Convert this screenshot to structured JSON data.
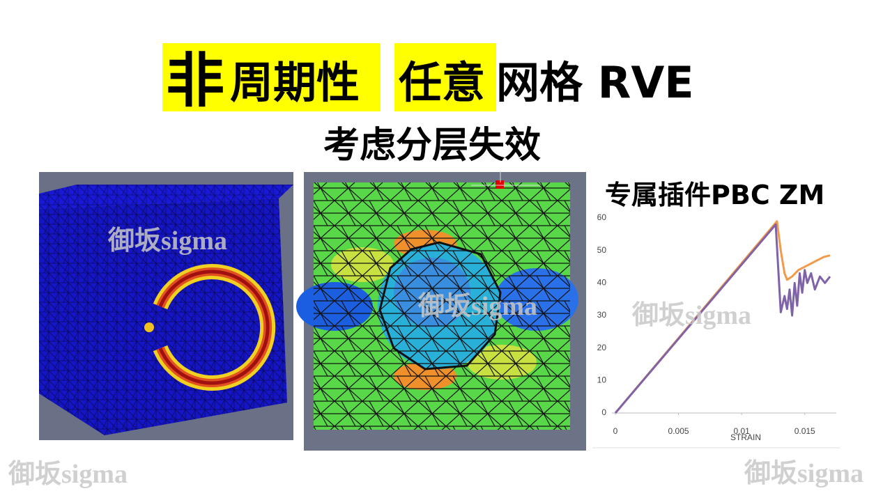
{
  "title_parts": [
    "非",
    "周期性",
    "任意",
    "网格 RVE"
  ],
  "subtitle": "考虑分层失效",
  "plugin_label": "专属插件PBC ZM",
  "watermarks": [
    "御坂sigma",
    "御坂sigma",
    "御坂sigma",
    "御坂sigma",
    "御坂sigma"
  ],
  "chart_data": {
    "type": "line",
    "x_label": "STRAIN",
    "xlim": [
      0,
      0.0175
    ],
    "ylim": [
      0,
      62
    ],
    "xticks": [
      0,
      0.005,
      0.01,
      0.015
    ],
    "yticks": [
      0,
      10,
      20,
      30,
      40,
      50,
      60
    ],
    "series": [
      {
        "color": "#f39a4a",
        "x": [
          0,
          0.0128,
          0.0131,
          0.0134,
          0.0136,
          0.014,
          0.0145,
          0.015,
          0.0155,
          0.016,
          0.0165,
          0.017
        ],
        "values": [
          0,
          59,
          50,
          43,
          41,
          42,
          44,
          45,
          46,
          47,
          48,
          48.5
        ]
      },
      {
        "color": "#8062a8",
        "x": [
          0,
          0.0127,
          0.0131,
          0.0134,
          0.0136,
          0.0138,
          0.014,
          0.0142,
          0.0144,
          0.0146,
          0.0148,
          0.015,
          0.0152,
          0.0155,
          0.0158,
          0.0162,
          0.0166,
          0.017
        ],
        "values": [
          0,
          58,
          31,
          36,
          32,
          38,
          30,
          40,
          33,
          43,
          37,
          44,
          40,
          43,
          38,
          42,
          40,
          42
        ]
      }
    ]
  }
}
